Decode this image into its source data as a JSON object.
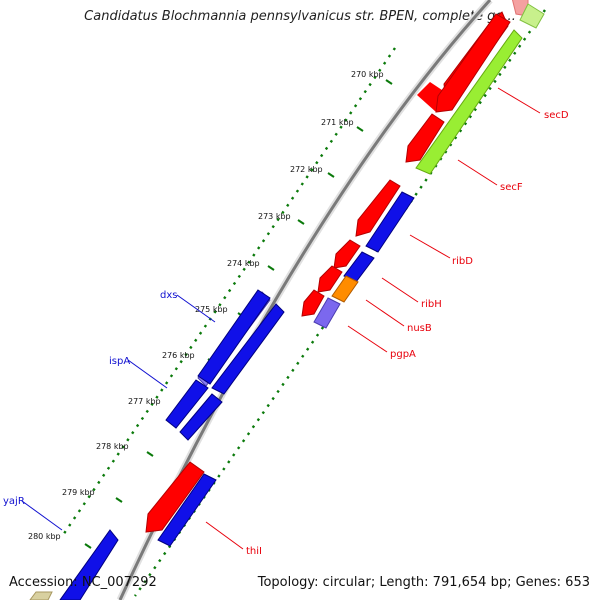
{
  "title": "Candidatus Blochmannia pennsylvanicus str. BPEN, complete ge...",
  "footer": {
    "accession": "Accession: NC_007292",
    "summary": "Topology: circular; Length: 791,654 bp; Genes: 653"
  },
  "ticks": [
    "270 kbp",
    "271 kbp",
    "272 kbp",
    "273 kbp",
    "274 kbp",
    "275 kbp",
    "276 kbp",
    "277 kbp",
    "278 kbp",
    "279 kbp",
    "280 kbp"
  ],
  "genes_forward": [
    {
      "name": "secD",
      "color": "#e8000b"
    },
    {
      "name": "secF",
      "color": "#e8000b"
    },
    {
      "name": "ribD",
      "color": "#e8000b"
    },
    {
      "name": "ribH",
      "color": "#e8000b"
    },
    {
      "name": "nusB",
      "color": "#e8000b"
    },
    {
      "name": "pgpA",
      "color": "#e8000b"
    },
    {
      "name": "thiI",
      "color": "#e8000b"
    }
  ],
  "genes_reverse": [
    {
      "name": "dxs",
      "color": "#1010d0"
    },
    {
      "name": "ispA",
      "color": "#1010d0"
    },
    {
      "name": "yajR",
      "color": "#1010d0"
    }
  ],
  "legend_colors": {
    "cds_forward": "#ff0000",
    "cds_reverse": "#0000ff",
    "orf": "#99ff33",
    "cog_orange": "#ff8c00",
    "cog_purple": "#7b68ee",
    "backbone": "#888888",
    "tick": "#006600"
  }
}
